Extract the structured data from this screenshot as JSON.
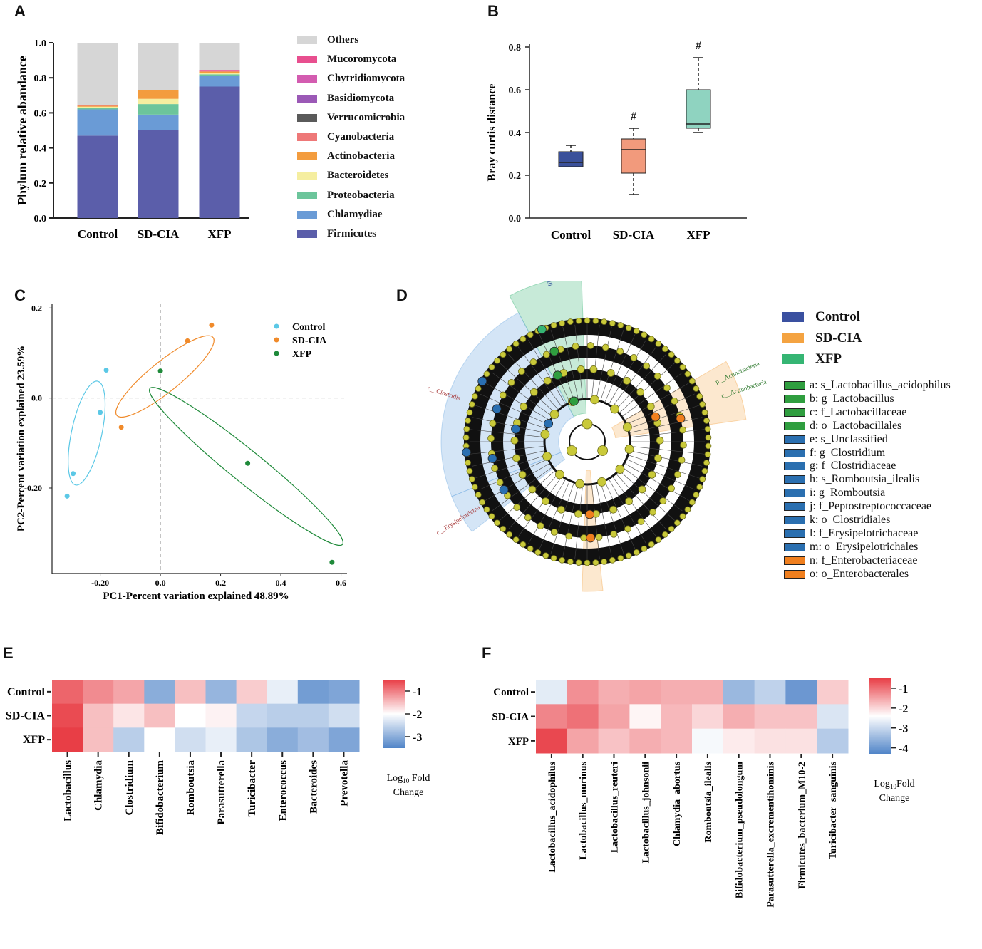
{
  "panels": {
    "A": "A",
    "B": "B",
    "C": "C",
    "D": "D",
    "E": "E",
    "F": "F"
  },
  "chart_data": [
    {
      "id": "A",
      "type": "bar",
      "stacked": true,
      "ylabel": "Phylum relative abandance",
      "ylim": [
        0,
        1.0
      ],
      "yticks": [
        "0.0",
        "0.2",
        "0.4",
        "0.6",
        "0.8",
        "1.0"
      ],
      "categories": [
        "Control",
        "SD-CIA",
        "XFP"
      ],
      "series": [
        {
          "name": "Firmicutes",
          "color": "#5b5eaa",
          "values": [
            0.47,
            0.5,
            0.75
          ]
        },
        {
          "name": "Chlamydiae",
          "color": "#6a9bd6",
          "values": [
            0.15,
            0.09,
            0.06
          ]
        },
        {
          "name": "Proteobacteria",
          "color": "#6cc59b",
          "values": [
            0.01,
            0.06,
            0.01
          ]
        },
        {
          "name": "Bacteroidetes",
          "color": "#f5eea0",
          "values": [
            0.005,
            0.03,
            0.005
          ]
        },
        {
          "name": "Actinobacteria",
          "color": "#f39c3e",
          "values": [
            0.005,
            0.05,
            0.01
          ]
        },
        {
          "name": "Cyanobacteria",
          "color": "#ee7878",
          "values": [
            0.005,
            0.0,
            0.005
          ]
        },
        {
          "name": "Verrucomicrobia",
          "color": "#5a5a5a",
          "values": [
            0.0,
            0.0,
            0.0
          ]
        },
        {
          "name": "Basidiomycota",
          "color": "#9b59b6",
          "values": [
            0.0,
            0.0,
            0.0
          ]
        },
        {
          "name": "Chytridiomycota",
          "color": "#d35cb0",
          "values": [
            0.0,
            0.0,
            0.0
          ]
        },
        {
          "name": "Mucoromycota",
          "color": "#e84f8f",
          "values": [
            0.0,
            0.0,
            0.005
          ]
        },
        {
          "name": "Others",
          "color": "#d6d6d6",
          "values": [
            0.355,
            0.27,
            0.155
          ]
        }
      ],
      "legend": [
        "Others",
        "Mucoromycota",
        "Chytridiomycota",
        "Basidiomycota",
        "Verrucomicrobia",
        "Cyanobacteria",
        "Actinobacteria",
        "Bacteroidetes",
        "Proteobacteria",
        "Chlamydiae",
        "Firmicutes"
      ]
    },
    {
      "id": "B",
      "type": "box",
      "ylabel": "Bray curtis distance",
      "ylim": [
        0,
        0.8
      ],
      "yticks": [
        "0.0",
        "0.2",
        "0.4",
        "0.6",
        "0.8"
      ],
      "categories": [
        "Control",
        "SD-CIA",
        "XFP"
      ],
      "boxes": [
        {
          "name": "Control",
          "color": "#3a509a",
          "min": 0.24,
          "q1": 0.24,
          "median": 0.26,
          "q3": 0.31,
          "max": 0.34,
          "annotation": ""
        },
        {
          "name": "SD-CIA",
          "color": "#f29a7c",
          "min": 0.11,
          "q1": 0.21,
          "median": 0.32,
          "q3": 0.37,
          "max": 0.42,
          "annotation": "#"
        },
        {
          "name": "XFP",
          "color": "#8fd3c0",
          "min": 0.4,
          "q1": 0.42,
          "median": 0.44,
          "q3": 0.6,
          "max": 0.75,
          "annotation": "#"
        }
      ]
    },
    {
      "id": "C",
      "type": "scatter",
      "xlabel": "PC1-Percent variation explained 48.89%",
      "ylabel": "PC2-Percent variation explained 23.59%",
      "xlim": [
        -0.36,
        0.62
      ],
      "ylim": [
        -0.39,
        0.21
      ],
      "xticks": [
        -0.2,
        0.0,
        0.2,
        0.4,
        0.6
      ],
      "xtick_labels": [
        "-0.20",
        "0.0",
        "0.2",
        "0.4",
        "0.6"
      ],
      "yticks": [
        0.2,
        0.0,
        -0.2
      ],
      "ytick_labels": [
        "0.2",
        "0.0",
        "-0.20"
      ],
      "series": [
        {
          "name": "Control",
          "color": "#5bc8e6",
          "points": [
            [
              -0.18,
              0.062
            ],
            [
              -0.2,
              -0.032
            ],
            [
              -0.29,
              -0.168
            ],
            [
              -0.31,
              -0.218
            ]
          ]
        },
        {
          "name": "SD-CIA",
          "color": "#f08a2a",
          "points": [
            [
              0.17,
              0.162
            ],
            [
              0.09,
              0.127
            ],
            [
              -0.13,
              -0.065
            ]
          ]
        },
        {
          "name": "XFP",
          "color": "#1f8a3a",
          "points": [
            [
              0.0,
              0.06
            ],
            [
              0.29,
              -0.145
            ],
            [
              0.57,
              -0.365
            ]
          ]
        }
      ]
    },
    {
      "id": "D",
      "type": "cladogram",
      "groups": [
        {
          "name": "Control",
          "color": "#3a50a0"
        },
        {
          "name": "SD-CIA",
          "color": "#f4a341"
        },
        {
          "name": "XFP",
          "color": "#35b573"
        }
      ],
      "sector_labels": [
        "c__Bacilli",
        "c__Clostridia",
        "c__Erysipelotrichia",
        "p__Actinobacteria",
        "c__Actinobacteria"
      ],
      "taxa": [
        {
          "key": "a",
          "label": "a: s_Lactobacillus_acidophilus",
          "color": "#2f9e3f"
        },
        {
          "key": "b",
          "label": "b: g_Lactobacillus",
          "color": "#2f9e3f"
        },
        {
          "key": "c",
          "label": "c: f_Lactobacillaceae",
          "color": "#2f9e3f"
        },
        {
          "key": "d",
          "label": "d: o_Lactobacillales",
          "color": "#2f9e3f"
        },
        {
          "key": "e",
          "label": "e: s_Unclassified",
          "color": "#2a6fb0"
        },
        {
          "key": "f",
          "label": "f: g_Clostridium",
          "color": "#2a6fb0"
        },
        {
          "key": "g",
          "label": "g: f_Clostridiaceae",
          "color": "#2a6fb0"
        },
        {
          "key": "h",
          "label": "h: s_Romboutsia_ilealis",
          "color": "#2a6fb0"
        },
        {
          "key": "i",
          "label": "i: g_Romboutsia",
          "color": "#2a6fb0"
        },
        {
          "key": "j",
          "label": "j: f_Peptostreptococcaceae",
          "color": "#2a6fb0"
        },
        {
          "key": "k",
          "label": "k: o_Clostridiales",
          "color": "#2a6fb0"
        },
        {
          "key": "l",
          "label": "l:  f_Erysipelotrichaceae",
          "color": "#2a6fb0"
        },
        {
          "key": "m",
          "label": "m: o_Erysipelotrichales",
          "color": "#2a6fb0"
        },
        {
          "key": "n",
          "label": "n: f_Enterobacteriaceae",
          "color": "#f07f1e"
        },
        {
          "key": "o",
          "label": "o: o_Enterobacterales",
          "color": "#f07f1e"
        }
      ]
    },
    {
      "id": "E",
      "type": "heatmap",
      "rows": [
        "Control",
        "SD-CIA",
        "XFP"
      ],
      "columns": [
        "Lactobacillus",
        "Chlamydia",
        "Clostridium",
        "Bifidobacterium",
        "Romboutsia",
        "Parasutterella",
        "Turicibacter",
        "Enterococcus",
        "Bacteroides",
        "Prevotella"
      ],
      "values": [
        [
          -0.8,
          -1.1,
          -1.3,
          -3.0,
          -1.5,
          -2.9,
          -1.6,
          -2.2,
          -3.2,
          -3.1
        ],
        [
          -0.6,
          -1.5,
          -1.8,
          -1.5,
          -2.0,
          -1.9,
          -2.5,
          -2.6,
          -2.6,
          -2.4
        ],
        [
          -0.4,
          -1.5,
          -2.6,
          -2.0,
          -2.4,
          -2.2,
          -2.7,
          -3.0,
          -2.8,
          -3.1
        ]
      ],
      "colorbar": {
        "min": -3.5,
        "max": -0.5,
        "ticks": [
          -1,
          -2,
          -3
        ],
        "tick_labels": [
          "-1",
          "-2",
          "-3"
        ],
        "label_main": "Log",
        "label_sub": "10",
        "label_rest": " Fold",
        "label_line2": "Change"
      }
    },
    {
      "id": "F",
      "type": "heatmap",
      "rows": [
        "Control",
        "SD-CIA",
        "XFP"
      ],
      "columns": [
        "Lactobacillus_acidophilus",
        "Lactobacillus_murinus",
        "Lactobacillus_reuteri",
        "Lactobacillus_johnsonii",
        "Chlamydia_abortus",
        "Romboutsia_ilealis",
        "Bifidobacterium_pseudolongum",
        "Parasutterella_excrementihominis",
        "Firmicutes_bacterium_M10-2",
        "Turicibacter_sanguinis"
      ],
      "values": [
        [
          -2.7,
          -1.3,
          -1.6,
          -1.5,
          -1.6,
          -1.6,
          -3.5,
          -3.1,
          -4.0,
          -1.9
        ],
        [
          -1.2,
          -1.0,
          -1.5,
          -2.3,
          -1.7,
          -2.0,
          -1.6,
          -1.8,
          -1.8,
          -2.8
        ],
        [
          -0.6,
          -1.5,
          -1.8,
          -1.6,
          -1.7,
          -2.5,
          -2.2,
          -2.1,
          -2.1,
          -3.2
        ]
      ],
      "colorbar": {
        "min": -4.3,
        "max": -0.5,
        "ticks": [
          -1,
          -2,
          -3,
          -4
        ],
        "tick_labels": [
          "-1",
          "-2",
          "-3",
          "-4"
        ],
        "label_main": "Log",
        "label_sub": "10",
        "label_rest": "Fold",
        "label_line2": "Change"
      }
    }
  ]
}
